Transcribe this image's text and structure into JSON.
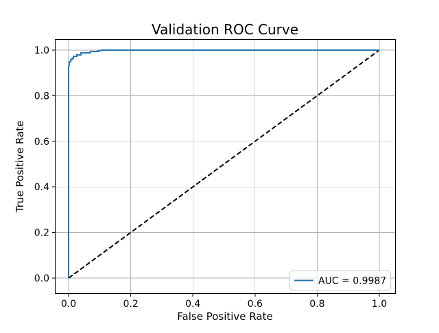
{
  "chart_data": {
    "type": "line",
    "title": "Validation ROC Curve",
    "xlabel": "False Positive Rate",
    "ylabel": "True Positive Rate",
    "xlim": [
      -0.0442,
      1.053
    ],
    "ylim": [
      -0.0693,
      1.0482
    ],
    "xticks": [
      0,
      0.2,
      0.4,
      0.6,
      0.8,
      1.0
    ],
    "yticks": [
      0,
      0.2,
      0.4,
      0.6,
      0.8,
      1.0
    ],
    "xtick_labels": [
      "0.0",
      "0.2",
      "0.4",
      "0.6",
      "0.8",
      "1.0"
    ],
    "ytick_labels": [
      "0.0",
      "0.2",
      "0.4",
      "0.6",
      "0.8",
      "1.0"
    ],
    "grid": true,
    "auc": 0.9987,
    "legend": {
      "position": "lower right",
      "entries": [
        {
          "label": "AUC = 0.9987",
          "color": "#1f77b4",
          "style": "solid"
        }
      ]
    },
    "series": [
      {
        "name": "chance-diagonal",
        "color": "#000000",
        "style": "dashed",
        "linewidth": 2,
        "points": [
          [
            0,
            0
          ],
          [
            1,
            1
          ]
        ]
      },
      {
        "name": "roc-curve",
        "color": "#1f77b4",
        "style": "solid",
        "linewidth": 2,
        "points": [
          [
            0,
            0
          ],
          [
            0,
            0.928
          ],
          [
            0.002,
            0.934
          ],
          [
            0.002,
            0.949
          ],
          [
            0.007,
            0.949
          ],
          [
            0.007,
            0.958
          ],
          [
            0.011,
            0.958
          ],
          [
            0.011,
            0.964
          ],
          [
            0.0155,
            0.964
          ],
          [
            0.0155,
            0.973
          ],
          [
            0.0265,
            0.973
          ],
          [
            0.0265,
            0.979
          ],
          [
            0.04,
            0.979
          ],
          [
            0.04,
            0.988
          ],
          [
            0.07,
            0.988
          ],
          [
            0.07,
            0.994
          ],
          [
            0.095,
            0.994
          ],
          [
            0.095,
            0.998
          ],
          [
            0.105,
            0.998
          ],
          [
            0.105,
            1.0
          ],
          [
            1.0,
            1.0
          ]
        ]
      }
    ]
  },
  "colors": {
    "curve": "#1f77b4",
    "diagonal": "#000000",
    "grid": "#b0b0b0",
    "spine": "#000000",
    "background": "#ffffff",
    "legend_border": "#cccccc",
    "text": "#000000"
  }
}
